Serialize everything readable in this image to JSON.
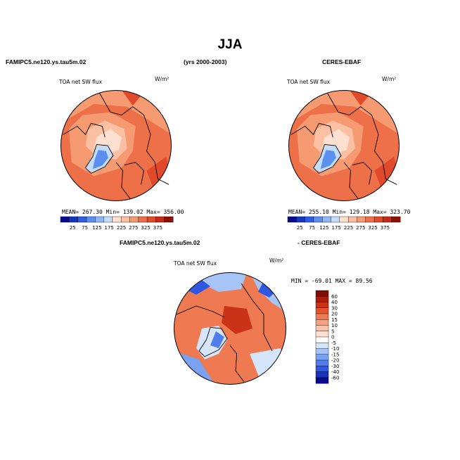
{
  "figure": {
    "title": "JJA",
    "left_header": "FAMIPC5.ne120.ys.tau5m.02",
    "center_header": "(yrs 2000-2003)",
    "right_header": "CERES-EBAF",
    "diff_header_left": "FAMIPC5.ne120.ys.tau5m.02",
    "diff_header_right": "- CERES-EBAF"
  },
  "colors": {
    "map_levels": [
      "#0a0a8c",
      "#1736c0",
      "#2f5fe0",
      "#5b8ff0",
      "#8fb7f5",
      "#c2dcfa",
      "#fde0cf",
      "#fbc0a2",
      "#f69a72",
      "#ee7048",
      "#e04a2a",
      "#c42a16",
      "#8f0e05"
    ],
    "diff_levels": [
      "#0a0a8c",
      "#1732c4",
      "#2e58e2",
      "#4f7deb",
      "#7aa2f2",
      "#a7c4f7",
      "#d5e6fb",
      "#ffffff",
      "#fde0d2",
      "#fbc3ab",
      "#f6a07c",
      "#ef7a52",
      "#e4552f",
      "#cb3318",
      "#a81e0a",
      "#7e0e03"
    ]
  },
  "chart_data": [
    {
      "type": "heatmap",
      "projection": "north-polar-stereographic",
      "title": "TOA net SW flux",
      "units": "W/m²",
      "stats": {
        "mean": "267.30",
        "min": "139.02",
        "max": "356.00"
      },
      "stats_text": "MEAN= 267.30  Min= 139.02  Max= 356.00",
      "colorbar_ticks": [
        "25",
        "75",
        "125",
        "175",
        "225",
        "275",
        "325",
        "375"
      ]
    },
    {
      "type": "heatmap",
      "projection": "north-polar-stereographic",
      "title": "TOA net SW flux",
      "units": "W/m²",
      "stats": {
        "mean": "255.10",
        "min": "129.18",
        "max": "323.70"
      },
      "stats_text": "MEAN= 255.10  Min= 129.18  Max= 323.70",
      "colorbar_ticks": [
        "25",
        "75",
        "125",
        "175",
        "225",
        "275",
        "325",
        "375"
      ]
    },
    {
      "type": "heatmap",
      "projection": "north-polar-stereographic",
      "title": "TOA net SW flux",
      "units": "W/m²",
      "stats": {
        "min": "-69.01",
        "max": "89.56"
      },
      "stats_text": "MIN = -69.01  MAX =  89.56",
      "colorbar_ticks": [
        "60",
        "40",
        "30",
        "20",
        "15",
        "10",
        "5",
        "0",
        "-5",
        "-10",
        "-15",
        "-20",
        "-30",
        "-40",
        "-60"
      ]
    }
  ]
}
